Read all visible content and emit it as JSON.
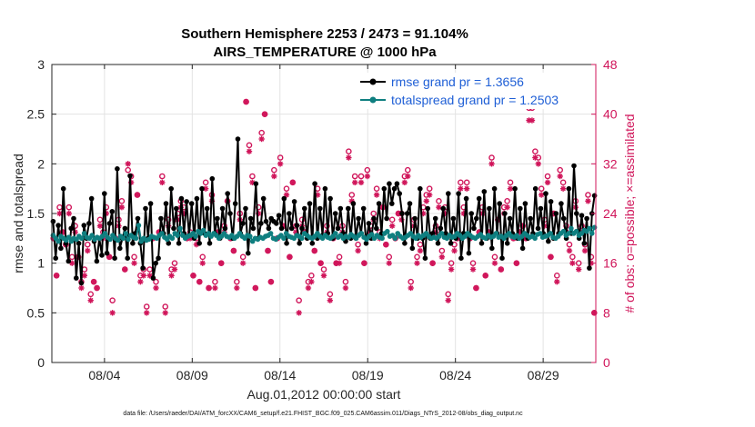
{
  "chart_data": {
    "type": "line",
    "title_line1": "Southern Hemisphere 2253 / 2473 = 91.104%",
    "title_line2": "AIRS_TEMPERATURE @ 1000 hPa",
    "xlabel": "Aug.01,2012 00:00:00 start",
    "ylabel_left": "rmse and totalspread",
    "ylabel_right": "# of obs: o=possible; ×=assimilated",
    "footnote": "data file: /Users/raeder/DAI/ATM_forcXX/CAM6_setup/f.e21.FHIST_BGC.f09_025.CAM6assim.011/Diags_NTrS_2012-08/obs_diag_output.nc",
    "x_range_days": [
      0,
      31
    ],
    "x_ticks": [
      {
        "day": 3,
        "label": "08/04"
      },
      {
        "day": 8,
        "label": "08/09"
      },
      {
        "day": 13,
        "label": "08/14"
      },
      {
        "day": 18,
        "label": "08/19"
      },
      {
        "day": 23,
        "label": "08/24"
      },
      {
        "day": 28,
        "label": "08/29"
      }
    ],
    "ylim_left": [
      0,
      3
    ],
    "y_ticks_left": [
      "0",
      "0.5",
      "1",
      "1.5",
      "2",
      "2.5",
      "3"
    ],
    "ylim_right": [
      0,
      48
    ],
    "y_ticks_right": [
      "0",
      "8",
      "16",
      "24",
      "32",
      "40",
      "48"
    ],
    "grid": true,
    "legend_position": "top-right",
    "series": [
      {
        "name": "rmse grand pr = 1.3656",
        "color": "#000000",
        "marker": "dot",
        "axis": "left",
        "values": [
          1.42,
          1.05,
          1.38,
          1.15,
          1.75,
          1.2,
          1.02,
          1.35,
          1.45,
          0.85,
          1.2,
          0.8,
          1.38,
          1.25,
          1.4,
          1.65,
          1.22,
          1.02,
          1.25,
          1.08,
          1.7,
          1.1,
          1.4,
          1.52,
          1.05,
          1.95,
          1.15,
          1.25,
          1.35,
          1.05,
          1.88,
          1.2,
          1.3,
          1.45,
          1.2,
          0.95,
          1.55,
          1.25,
          1.6,
          0.85,
          1.0,
          1.05,
          1.45,
          1.3,
          1.6,
          1.2,
          1.75,
          1.35,
          1.55,
          1.2,
          1.65,
          1.3,
          1.62,
          1.28,
          1.6,
          1.25,
          1.65,
          1.2,
          1.75,
          1.3,
          1.55,
          1.2,
          1.85,
          1.3,
          1.45,
          1.25,
          1.55,
          1.35,
          1.7,
          1.5,
          1.25,
          1.6,
          2.25,
          1.3,
          1.4,
          1.55,
          1.1,
          1.45,
          1.35,
          1.8,
          1.25,
          1.4,
          1.65,
          1.42,
          1.35,
          1.45,
          1.42,
          1.4,
          1.48,
          1.35,
          1.65,
          1.2,
          1.5,
          1.35,
          1.62,
          1.38,
          1.2,
          1.35,
          1.55,
          1.25,
          1.6,
          1.2,
          1.8,
          1.25,
          1.55,
          1.28,
          1.75,
          1.3,
          1.65,
          1.25,
          1.5,
          1.35,
          1.55,
          1.3,
          1.22,
          1.55,
          1.25,
          1.6,
          1.25,
          1.45,
          1.3,
          1.55,
          1.2,
          1.4,
          1.25,
          1.45,
          1.35,
          1.6,
          1.3,
          1.75,
          1.45,
          1.8,
          1.6,
          1.75,
          1.8,
          1.7,
          1.5,
          1.2,
          1.5,
          1.6,
          1.15,
          1.45,
          1.25,
          1.75,
          1.25,
          1.05,
          1.55,
          1.25,
          1.3,
          1.45,
          1.2,
          1.35,
          1.55,
          1.3,
          1.7,
          1.2,
          1.45,
          1.25,
          1.7,
          1.05,
          1.3,
          1.65,
          1.1,
          1.5,
          1.35,
          1.45,
          1.65,
          1.2,
          1.72,
          1.25,
          1.55,
          1.15,
          1.75,
          1.3,
          1.6,
          1.05,
          1.5,
          1.2,
          1.45,
          1.3,
          1.75,
          1.25,
          1.55,
          1.15,
          1.6,
          1.25,
          1.45,
          1.3,
          1.75,
          1.35,
          1.55,
          1.3,
          1.7,
          1.22,
          1.62,
          1.25,
          1.5,
          1.3,
          1.6,
          1.45,
          1.25,
          1.75,
          1.3,
          1.98,
          1.5,
          1.25,
          1.48,
          1.2,
          1.45,
          0.95,
          1.5,
          1.68
        ]
      },
      {
        "name": "totalspread grand pr = 1.2503",
        "color": "#0f7f80",
        "marker": "dot",
        "axis": "left",
        "values": [
          1.28,
          1.25,
          1.22,
          1.27,
          1.25,
          1.23,
          1.26,
          1.22,
          1.25,
          1.24,
          1.27,
          1.25,
          1.3,
          1.26,
          1.25,
          1.28,
          1.24,
          1.26,
          1.25,
          1.27,
          1.3,
          1.26,
          1.24,
          1.28,
          1.25,
          1.23,
          1.27,
          1.25,
          1.3,
          1.24,
          1.28,
          1.26,
          1.25,
          1.38,
          1.22,
          1.25,
          1.23,
          1.24,
          1.27,
          1.26,
          1.25,
          1.28,
          1.3,
          1.26,
          1.24,
          1.27,
          1.25,
          1.3,
          1.28,
          1.35,
          1.28,
          1.25,
          1.27,
          1.28,
          1.3,
          1.27,
          1.32,
          1.3,
          1.33,
          1.28,
          1.3,
          1.27,
          1.3,
          1.28,
          1.25,
          1.27,
          1.3,
          1.27,
          1.26,
          1.28,
          1.25,
          1.27,
          1.3,
          1.27,
          1.25,
          1.28,
          1.27,
          1.22,
          1.25,
          1.24,
          1.26,
          1.25,
          1.27,
          1.28,
          1.3,
          1.25,
          1.24,
          1.26,
          1.28,
          1.25,
          1.3,
          1.27,
          1.26,
          1.25,
          1.28,
          1.27,
          1.25,
          1.3,
          1.28,
          1.26,
          1.25,
          1.27,
          1.3,
          1.27,
          1.25,
          1.28,
          1.26,
          1.25,
          1.27,
          1.3,
          1.26,
          1.28,
          1.25,
          1.27,
          1.26,
          1.29,
          1.27,
          1.25,
          1.28,
          1.3,
          1.26,
          1.24,
          1.27,
          1.29,
          1.25,
          1.28,
          1.26,
          1.25,
          1.3,
          1.32,
          1.27,
          1.28,
          1.25,
          1.3,
          1.27,
          1.25,
          1.26,
          1.28,
          1.3,
          1.27,
          1.25,
          1.28,
          1.26,
          1.28,
          1.3,
          1.27,
          1.25,
          1.26,
          1.25,
          1.27,
          1.3,
          1.26,
          1.25,
          1.28,
          1.26,
          1.27,
          1.3,
          1.28,
          1.25,
          1.27,
          1.3,
          1.28,
          1.26,
          1.25,
          1.27,
          1.29,
          1.26,
          1.25,
          1.28,
          1.26,
          1.27,
          1.3,
          1.26,
          1.27,
          1.25,
          1.28,
          1.3,
          1.27,
          1.26,
          1.28,
          1.25,
          1.27,
          1.3,
          1.28,
          1.26,
          1.27,
          1.25,
          1.29,
          1.3,
          1.26,
          1.27,
          1.28,
          1.3,
          1.26,
          1.25,
          1.27,
          1.3,
          1.32,
          1.28,
          1.3,
          1.35,
          1.3,
          1.32,
          1.28,
          1.3,
          1.33,
          1.32,
          1.35,
          1.3,
          1.36
        ]
      }
    ],
    "obs_color": "#d0155a",
    "obs_possible_counts": [
      20,
      14,
      25,
      21,
      19,
      25,
      17,
      22,
      17,
      13,
      15,
      19,
      11,
      13,
      12,
      23,
      21,
      25,
      17,
      10,
      20,
      23,
      26,
      15,
      31,
      30,
      17,
      27,
      14,
      15,
      9,
      15,
      20,
      13,
      21,
      30,
      9,
      23,
      15,
      16,
      24,
      26,
      25,
      20,
      21,
      14,
      20,
      13,
      17,
      29,
      12,
      27,
      13,
      21,
      16,
      22,
      26,
      20,
      18,
      13,
      24,
      17,
      42,
      35,
      30,
      12,
      25,
      37,
      40,
      18,
      13,
      31,
      20,
      33,
      22,
      28,
      17,
      29,
      22,
      10,
      23,
      21,
      13,
      14,
      18,
      28,
      16,
      15,
      22,
      11,
      20,
      16,
      17,
      22,
      13,
      34,
      27,
      30,
      19,
      30,
      16,
      31,
      22,
      24,
      28,
      21,
      25,
      19,
      17,
      23,
      20,
      24,
      24,
      30,
      31,
      13,
      23,
      17,
      19,
      25,
      27,
      28,
      16,
      22,
      26,
      18,
      25,
      11,
      16,
      19,
      20,
      29,
      25,
      29,
      20,
      16,
      12,
      21,
      25,
      14,
      21,
      33,
      17,
      23,
      15,
      25,
      26,
      29,
      20,
      16,
      21,
      22,
      20,
      41,
      41,
      34,
      33,
      28,
      23,
      30,
      17,
      24,
      14,
      31,
      29,
      22,
      19,
      17,
      26,
      16,
      22,
      19,
      27,
      17,
      8
    ],
    "obs_assimilated_counts": [
      20,
      14,
      24,
      21,
      19,
      24,
      16,
      21,
      17,
      12,
      14,
      18,
      10,
      13,
      12,
      22,
      20,
      24,
      17,
      8,
      20,
      22,
      25,
      15,
      32,
      29,
      16,
      27,
      13,
      14,
      8,
      14,
      20,
      12,
      21,
      29,
      8,
      22,
      14,
      15,
      23,
      25,
      24,
      20,
      20,
      14,
      19,
      13,
      16,
      28,
      12,
      26,
      12,
      21,
      16,
      21,
      26,
      20,
      18,
      12,
      23,
      16,
      42,
      34,
      29,
      12,
      24,
      36,
      40,
      18,
      13,
      30,
      20,
      32,
      22,
      27,
      17,
      29,
      21,
      8,
      22,
      21,
      12,
      13,
      18,
      27,
      16,
      14,
      21,
      10,
      20,
      16,
      16,
      21,
      12,
      33,
      26,
      29,
      18,
      29,
      16,
      30,
      21,
      23,
      27,
      20,
      25,
      19,
      16,
      22,
      20,
      24,
      23,
      29,
      30,
      12,
      22,
      16,
      18,
      24,
      26,
      27,
      16,
      21,
      25,
      17,
      24,
      10,
      15,
      18,
      20,
      28,
      24,
      28,
      20,
      15,
      12,
      21,
      24,
      14,
      21,
      32,
      16,
      23,
      15,
      24,
      25,
      28,
      20,
      16,
      21,
      22,
      20,
      39,
      39,
      33,
      32,
      27,
      22,
      29,
      17,
      24,
      13,
      30,
      28,
      21,
      18,
      16,
      25,
      15,
      21,
      18,
      26,
      16,
      8
    ]
  }
}
